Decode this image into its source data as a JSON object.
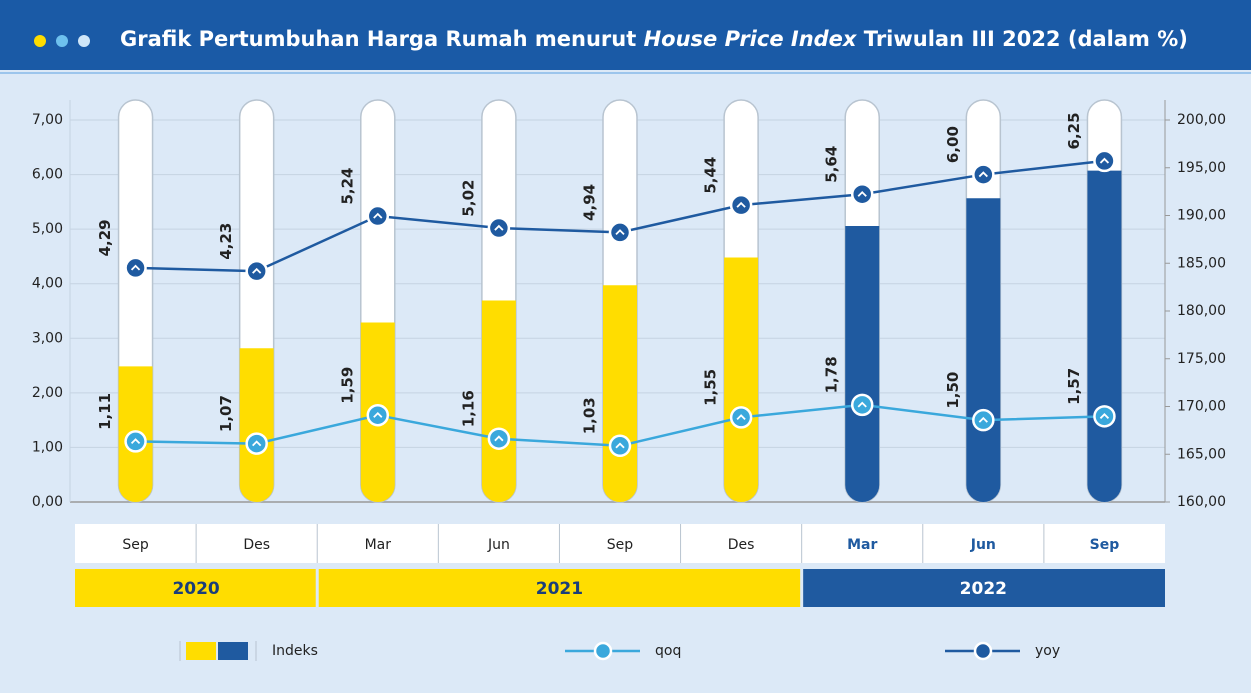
{
  "chart_data": {
    "type": "bar",
    "title": [
      {
        "text": "Grafik Pertumbuhan Harga Rumah menurut "
      },
      {
        "text": "House Price Index",
        "italic": true
      },
      {
        "text": " Triwulan III 2022 (dalam %)"
      }
    ],
    "categories": [
      "Sep",
      "Des",
      "Mar",
      "Jun",
      "Sep",
      "Des",
      "Mar",
      "Jun",
      "Sep"
    ],
    "groups": [
      {
        "label": "2020",
        "span": 2,
        "color": "#FFDD00"
      },
      {
        "label": "2021",
        "span": 4,
        "color": "#FFDD00"
      },
      {
        "label": "2022",
        "span": 3,
        "color": "#1F5AA0"
      }
    ],
    "series": [
      {
        "name": "Indeks",
        "type": "bar",
        "axis": "y2",
        "colors": [
          "#FFDD00",
          "#FFDD00",
          "#FFDD00",
          "#FFDD00",
          "#FFDD00",
          "#FFDD00",
          "#1F5AA0",
          "#1F5AA0",
          "#1F5AA0"
        ],
        "values": [
          174.2,
          176.1,
          178.8,
          181.1,
          182.7,
          185.6,
          188.9,
          191.8,
          194.7
        ]
      },
      {
        "name": "qoq",
        "type": "line",
        "color": "#3AA8DC",
        "values": [
          1.11,
          1.07,
          1.59,
          1.16,
          1.03,
          1.55,
          1.78,
          1.5,
          1.57
        ],
        "value_labels": [
          "1,11",
          "1,07",
          "1,59",
          "1,16",
          "1,03",
          "1,55",
          "1,78",
          "1,50",
          "1,57"
        ]
      },
      {
        "name": "yoy",
        "type": "line",
        "color": "#1F5AA0",
        "values": [
          4.29,
          4.23,
          5.24,
          5.02,
          4.94,
          5.44,
          5.64,
          6.0,
          6.25
        ],
        "value_labels": [
          "4,29",
          "4,23",
          "5,24",
          "5,02",
          "4,94",
          "5,44",
          "5,64",
          "6,00",
          "6,25"
        ]
      }
    ],
    "ylim": [
      0,
      7
    ],
    "yticks": [
      {
        "value": 0,
        "label": "0,00"
      },
      {
        "value": 1,
        "label": "1,00"
      },
      {
        "value": 2,
        "label": "2,00"
      },
      {
        "value": 3,
        "label": "3,00"
      },
      {
        "value": 4,
        "label": "4,00"
      },
      {
        "value": 5,
        "label": "5,00"
      },
      {
        "value": 6,
        "label": "6,00"
      },
      {
        "value": 7,
        "label": "7,00"
      }
    ],
    "y2lim": [
      160,
      200
    ],
    "y2ticks": [
      {
        "value": 160,
        "label": "160,00"
      },
      {
        "value": 165,
        "label": "165,00"
      },
      {
        "value": 170,
        "label": "170,00"
      },
      {
        "value": 175,
        "label": "175,00"
      },
      {
        "value": 180,
        "label": "180,00"
      },
      {
        "value": 185,
        "label": "185,00"
      },
      {
        "value": 190,
        "label": "190,00"
      },
      {
        "value": 195,
        "label": "195,00"
      },
      {
        "value": 200,
        "label": "200,00"
      }
    ],
    "grid": true
  }
}
